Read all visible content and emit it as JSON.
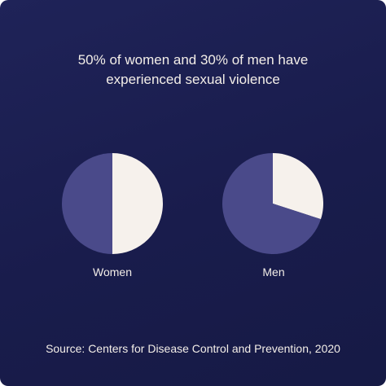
{
  "title": "50% of women and 30% of men have\nexperienced sexual violence",
  "source": "Source: Centers for Disease Control and Prevention, 2020",
  "colors": {
    "background": "#1c2052",
    "share": "#f6f1ec",
    "remainder": "#4a4a8a"
  },
  "chart_data": [
    {
      "type": "pie",
      "label": "Women",
      "slices": [
        {
          "name": "experienced sexual violence",
          "value": 50
        },
        {
          "name": "remainder",
          "value": 50
        }
      ]
    },
    {
      "type": "pie",
      "label": "Men",
      "slices": [
        {
          "name": "experienced sexual violence",
          "value": 30
        },
        {
          "name": "remainder",
          "value": 70
        }
      ]
    }
  ]
}
